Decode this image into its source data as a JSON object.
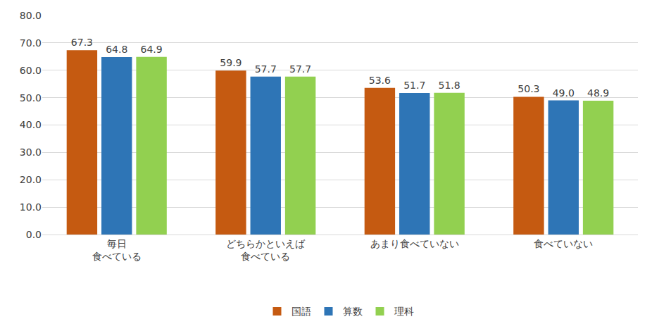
{
  "chart_data": {
    "type": "bar",
    "categories": [
      "毎日\n食べている",
      "どちらかといえば\n食べている",
      "あまり食べていない",
      "食べていない"
    ],
    "series": [
      {
        "name": "国語",
        "color": "#c55a11",
        "values": [
          67.3,
          59.9,
          53.6,
          50.3
        ],
        "value_labels": [
          "67.3",
          "59.9",
          "53.6",
          "50.3"
        ]
      },
      {
        "name": "算数",
        "color": "#2e75b6",
        "values": [
          64.8,
          57.7,
          51.7,
          49.0
        ],
        "value_labels": [
          "64.8",
          "57.7",
          "51.7",
          "49.0"
        ]
      },
      {
        "name": "理科",
        "color": "#92d050",
        "values": [
          64.9,
          57.7,
          51.8,
          48.9
        ],
        "value_labels": [
          "64.9",
          "57.7",
          "51.8",
          "48.9"
        ]
      }
    ],
    "ylim": [
      0,
      80
    ],
    "yticks": [
      {
        "value": 0,
        "label": "0.0"
      },
      {
        "value": 10,
        "label": "10.0"
      },
      {
        "value": 20,
        "label": "20.0"
      },
      {
        "value": 30,
        "label": "30.0"
      },
      {
        "value": 40,
        "label": "40.0"
      },
      {
        "value": 50,
        "label": "50.0"
      },
      {
        "value": 60,
        "label": "60.0"
      },
      {
        "value": 70,
        "label": "70.0"
      },
      {
        "value": 80,
        "label": "80.0"
      }
    ],
    "grid": true,
    "legend": "bottom",
    "data_labels": true
  }
}
